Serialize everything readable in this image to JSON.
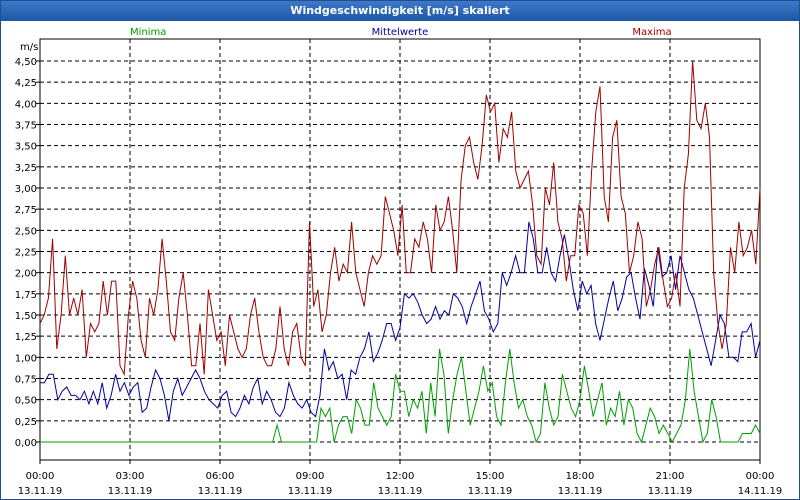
{
  "window": {
    "title": "Windgeschwindigkeit [m/s] skaliert"
  },
  "chart_data": {
    "type": "line",
    "title": "Windgeschwindigkeit [m/s] skaliert",
    "ylabel": "m/s",
    "xlabel": "",
    "ylim": [
      0,
      4.75
    ],
    "xlim": [
      0,
      24
    ],
    "grid": true,
    "y_ticks": [
      0,
      0.25,
      0.5,
      0.75,
      1.0,
      1.25,
      1.5,
      1.75,
      2.0,
      2.25,
      2.5,
      2.75,
      3.0,
      3.25,
      3.5,
      3.75,
      4.0,
      4.25,
      4.5
    ],
    "y_tick_labels": [
      "0,00",
      "0,25",
      "0,50",
      "0,75",
      "1,00",
      "1,25",
      "1,50",
      "1,75",
      "2,00",
      "2,25",
      "2,50",
      "2,75",
      "3,00",
      "3,25",
      "3,50",
      "3,75",
      "4,00",
      "4,25",
      "4,50"
    ],
    "x_ticks": [
      0,
      3,
      6,
      9,
      12,
      15,
      18,
      21,
      24
    ],
    "x_tick_labels": [
      {
        "time": "00:00",
        "date": "13.11.19"
      },
      {
        "time": "03:00",
        "date": "13.11.19"
      },
      {
        "time": "06:00",
        "date": "13.11.19"
      },
      {
        "time": "09:00",
        "date": "13.11.19"
      },
      {
        "time": "12:00",
        "date": "13.11.19"
      },
      {
        "time": "15:00",
        "date": "13.11.19"
      },
      {
        "time": "18:00",
        "date": "13.11.19"
      },
      {
        "time": "21:00",
        "date": "13.11.19"
      },
      {
        "time": "00:00",
        "date": "14.11.19"
      }
    ],
    "x_unit": "hours since 13.11.19 00:00, 10-minute intervals",
    "series": [
      {
        "name": "Minima",
        "color": "#00a000",
        "legend_position": "top-left",
        "values": [
          0,
          0,
          0,
          0,
          0,
          0,
          0,
          0,
          0,
          0,
          0,
          0,
          0,
          0,
          0,
          0,
          0,
          0,
          0,
          0,
          0,
          0,
          0,
          0,
          0,
          0,
          0,
          0,
          0,
          0,
          0,
          0,
          0,
          0,
          0,
          0,
          0,
          0,
          0,
          0,
          0,
          0,
          0,
          0,
          0,
          0,
          0,
          0,
          0,
          0,
          0,
          0,
          0,
          0,
          0.2,
          0,
          0,
          0,
          0,
          0,
          0,
          0,
          0,
          0,
          0.4,
          0.3,
          0.4,
          0,
          0.2,
          0.3,
          0.3,
          0.1,
          0.5,
          0.4,
          0.2,
          0.2,
          0.7,
          0.4,
          0.3,
          0.2,
          0.3,
          0.8,
          0.6,
          0.6,
          0.3,
          0.5,
          0.4,
          0.6,
          0.1,
          0.7,
          0.3,
          1.1,
          0.8,
          0.1,
          0.5,
          0.8,
          1.0,
          0.6,
          0.2,
          0.4,
          0.6,
          0.9,
          0.6,
          0.7,
          0.3,
          0.2,
          0.7,
          1.1,
          0.7,
          0.4,
          0.5,
          0.3,
          0.2,
          0,
          0.1,
          0.7,
          0.4,
          0.2,
          0.3,
          0.8,
          0.6,
          0.4,
          0.3,
          0.5,
          0.9,
          0.6,
          0.3,
          0.5,
          0.7,
          0.2,
          0.4,
          0.3,
          0.6,
          0.2,
          0.5,
          0.4,
          0.1,
          0,
          0.2,
          0.4,
          0.3,
          0.1,
          0.2,
          0.1,
          0,
          0.1,
          0.2,
          0.5,
          1.1,
          0.6,
          0.3,
          0,
          0.1,
          0.5,
          0.3,
          0,
          0,
          0,
          0,
          0,
          0.1,
          0.1,
          0.1,
          0.2,
          0.1
        ]
      },
      {
        "name": "Mittelwerte",
        "color": "#0000a0",
        "legend_position": "top-center",
        "values": [
          0.7,
          0.7,
          0.8,
          0.8,
          0.5,
          0.6,
          0.65,
          0.55,
          0.55,
          0.5,
          0.6,
          0.45,
          0.6,
          0.45,
          0.7,
          0.4,
          0.55,
          0.8,
          0.6,
          0.7,
          0.55,
          0.65,
          0.7,
          0.35,
          0.4,
          0.65,
          0.85,
          0.75,
          0.55,
          0.25,
          0.6,
          0.75,
          0.55,
          0.65,
          0.75,
          0.85,
          0.75,
          0.6,
          0.5,
          0.45,
          0.4,
          0.55,
          0.6,
          0.35,
          0.3,
          0.4,
          0.55,
          0.45,
          0.65,
          0.75,
          0.45,
          0.6,
          0.5,
          0.35,
          0.3,
          0.4,
          0.7,
          0.55,
          0.45,
          0.4,
          0.5,
          0.35,
          0.3,
          0.55,
          1.1,
          0.85,
          0.95,
          0.75,
          0.8,
          0.5,
          0.85,
          0.8,
          1.0,
          1.1,
          1.3,
          0.95,
          1.05,
          1.2,
          1.4,
          1.4,
          1.2,
          1.35,
          1.75,
          1.7,
          1.75,
          1.65,
          1.5,
          1.4,
          1.45,
          1.6,
          1.45,
          1.55,
          1.5,
          1.75,
          1.7,
          1.6,
          1.4,
          1.6,
          1.75,
          1.9,
          1.55,
          1.45,
          1.3,
          1.4,
          2.0,
          1.85,
          2.0,
          2.2,
          2.0,
          2.0,
          2.6,
          2.4,
          2.0,
          2.0,
          2.3,
          2.0,
          1.9,
          2.2,
          2.45,
          2.15,
          1.8,
          1.55,
          1.9,
          1.75,
          1.85,
          1.4,
          1.2,
          1.45,
          1.7,
          1.9,
          1.55,
          1.7,
          1.95,
          2.0,
          1.7,
          1.45,
          2.05,
          1.85,
          1.6,
          2.3,
          1.95,
          2.0,
          2.2,
          1.8,
          2.2,
          2.0,
          1.8,
          1.7,
          1.5,
          1.3,
          1.1,
          0.9,
          1.2,
          1.5,
          1.4,
          1.0,
          1.0,
          0.95,
          1.3,
          1.3,
          1.4,
          1.0,
          1.2
        ]
      },
      {
        "name": "Maxima",
        "color": "#a00000",
        "legend_position": "top-right",
        "values": [
          1.4,
          1.5,
          1.7,
          2.4,
          1.1,
          1.5,
          2.2,
          1.5,
          1.7,
          1.5,
          1.8,
          1.0,
          1.4,
          1.3,
          1.4,
          1.9,
          1.5,
          1.9,
          1.9,
          0.9,
          0.8,
          1.5,
          1.9,
          1.7,
          1.2,
          1.0,
          1.7,
          1.5,
          1.8,
          2.4,
          1.9,
          1.3,
          1.2,
          1.7,
          2.0,
          1.5,
          0.9,
          0.9,
          1.4,
          0.8,
          1.8,
          1.5,
          1.2,
          1.3,
          0.9,
          1.5,
          1.3,
          1.1,
          1.0,
          1.1,
          1.5,
          1.7,
          1.3,
          1.0,
          0.9,
          0.9,
          1.1,
          1.6,
          1.1,
          0.9,
          1.3,
          1.4,
          1.0,
          0.9,
          2.6,
          1.6,
          1.8,
          1.3,
          1.5,
          2.0,
          2.3,
          1.9,
          2.1,
          2.0,
          2.6,
          2.0,
          1.8,
          1.6,
          2.0,
          2.2,
          2.1,
          2.2,
          2.9,
          2.7,
          2.5,
          2.2,
          2.8,
          2.0,
          2.0,
          2.4,
          2.3,
          2.6,
          2.4,
          2.0,
          2.8,
          2.5,
          2.6,
          2.9,
          2.5,
          2.0,
          3.1,
          3.5,
          3.6,
          3.3,
          3.1,
          3.5,
          4.1,
          3.9,
          4.0,
          3.3,
          3.7,
          3.6,
          3.9,
          3.2,
          3.0,
          3.1,
          3.2,
          2.8,
          2.2,
          2.1,
          3.0,
          2.8,
          3.3,
          2.6,
          2.4,
          1.9,
          2.2,
          2.2,
          2.8,
          2.7,
          2.2,
          3.2,
          3.9,
          4.2,
          2.9,
          2.6,
          3.6,
          3.8,
          2.9,
          2.7,
          2.0,
          2.2,
          2.6,
          2.4,
          1.6,
          1.8,
          2.1,
          2.3,
          1.9,
          1.6,
          1.7,
          2.0,
          1.6,
          3.0,
          3.4,
          4.5,
          3.8,
          3.7,
          4.0,
          3.6,
          2.0,
          1.4,
          1.1,
          1.4,
          2.3,
          2.0,
          2.6,
          2.2,
          2.3,
          2.5,
          2.1,
          3.0
        ]
      }
    ]
  }
}
